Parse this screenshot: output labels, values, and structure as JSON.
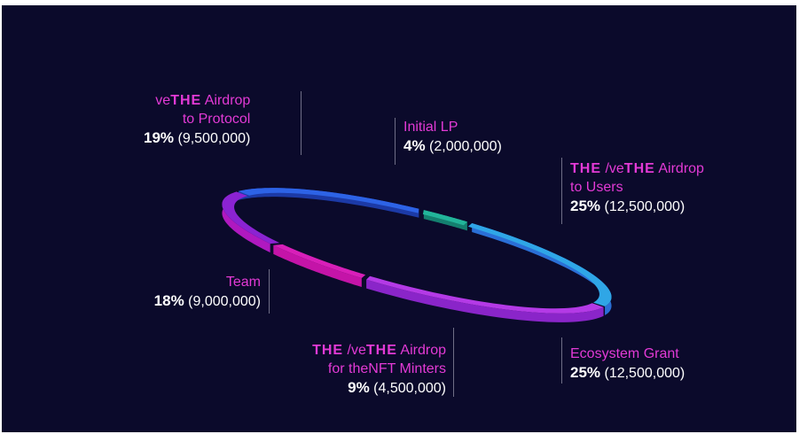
{
  "chart_data": {
    "type": "pie",
    "categories": [
      "veTHE Airdrop to Protocol",
      "Initial LP",
      "THE / veTHE Airdrop to Users",
      "Ecosystem Grant",
      "THE / veTHE Airdrop for theNFT Minters",
      "Team"
    ],
    "values": [
      19,
      4,
      25,
      25,
      9,
      18
    ],
    "amounts": [
      "9,500,000",
      "2,000,000",
      "12,500,000",
      "12,500,000",
      "4,500,000",
      "9,000,000"
    ],
    "labels": [
      {
        "line1": "veTHE Airdrop",
        "line2": "to Protocol",
        "pct": "19%",
        "amount": "(9,500,000)"
      },
      {
        "line1": "Initial LP",
        "pct": "4%",
        "amount": "(2,000,000)"
      },
      {
        "line1": "THE /veTHE Airdrop",
        "line2": "to Users",
        "pct": "25%",
        "amount": "(12,500,000)"
      },
      {
        "line1": "Ecosystem Grant",
        "pct": "25%",
        "amount": "(12,500,000)"
      },
      {
        "line1": "THE /veTHE Airdrop",
        "line2": "for theNFT Minters",
        "pct": "9%",
        "amount": "(4,500,000)"
      },
      {
        "line1": "Team",
        "pct": "18%",
        "amount": "(9,000,000)"
      }
    ],
    "brand_word": "THE",
    "colors": {
      "background": "#0b0a2b",
      "label_accent": "#e33ad6",
      "segments": [
        [
          "#1c3aa6",
          "#2d63e6"
        ],
        [
          "#14806f",
          "#22b59a"
        ],
        [
          "#2a6fd6",
          "#2fa6e6"
        ],
        [
          "#8a25c9",
          "#b43ae6"
        ],
        [
          "#c414a8",
          "#d81fb9"
        ],
        [
          "#b019c0",
          "#8b23d2"
        ]
      ]
    }
  }
}
